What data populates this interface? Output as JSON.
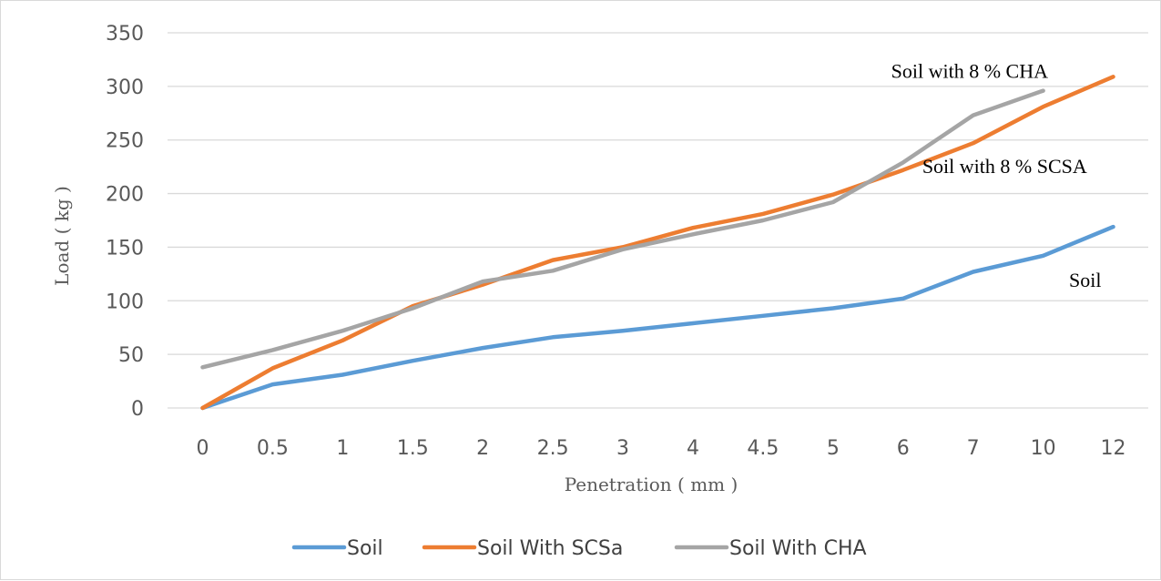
{
  "chart_data": {
    "type": "line",
    "xlabel": "Penetration ( mm )",
    "ylabel": "Load ( kg )",
    "categories": [
      "0",
      "0.5",
      "1",
      "1.5",
      "2",
      "2.5",
      "3",
      "4",
      "4.5",
      "5",
      "6",
      "7",
      "10",
      "12"
    ],
    "ylim": [
      0,
      350
    ],
    "yticks": [
      0,
      50,
      100,
      150,
      200,
      250,
      300,
      350
    ],
    "grid": true,
    "legend_position": "bottom",
    "series": [
      {
        "name": "Soil",
        "color": "#5b9bd5",
        "values": [
          0,
          22,
          31,
          44,
          56,
          66,
          72,
          79,
          86,
          93,
          102,
          127,
          142,
          169
        ]
      },
      {
        "name": "Soil With SCSa",
        "color": "#ed7d31",
        "values": [
          0,
          37,
          63,
          95,
          115,
          138,
          150,
          168,
          181,
          199,
          222,
          247,
          281,
          309
        ]
      },
      {
        "name": "Soil With CHA",
        "color": "#a5a5a5",
        "values": [
          38,
          54,
          72,
          93,
          118,
          128,
          148,
          162,
          175,
          192,
          229,
          273,
          296,
          null
        ]
      }
    ],
    "annotations": [
      {
        "text": "Soil with 8 % CHA",
        "x_index": 10.95,
        "y": 308
      },
      {
        "text": "Soil with 8 % SCSA",
        "x_index": 11.45,
        "y": 219
      },
      {
        "text": "Soil",
        "x_index": 12.6,
        "y": 113
      }
    ]
  }
}
